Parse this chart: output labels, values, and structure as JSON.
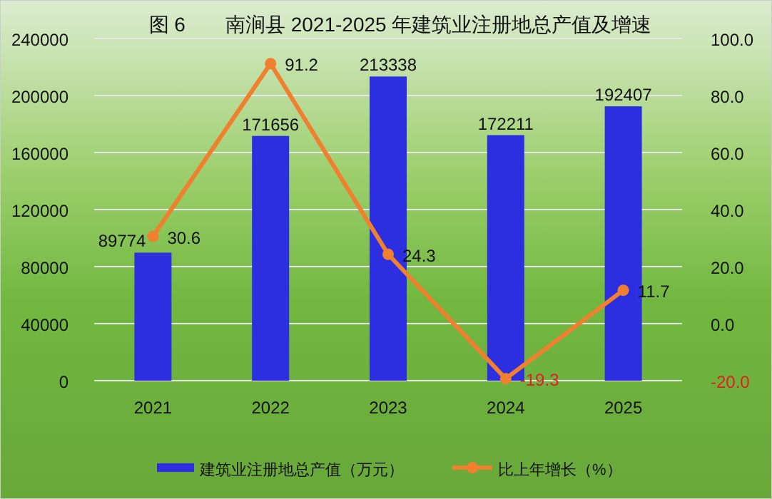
{
  "chart_data": {
    "type": "bar",
    "title": "图 6　　南涧县 2021-2025 年建筑业注册地总产值及增速",
    "categories": [
      "2021",
      "2022",
      "2023",
      "2024",
      "2025"
    ],
    "series": [
      {
        "name": "建筑业注册地总产值（万元）",
        "color": "#2b2fe0",
        "values": [
          89774,
          171656,
          213338,
          172211,
          192407
        ]
      },
      {
        "name": "比上年增长（%）",
        "type": "line",
        "axis": "y2",
        "color": "#f08030",
        "marker": "circle",
        "values": [
          30.6,
          91.2,
          24.3,
          -19.3,
          11.7
        ]
      }
    ],
    "ylim": [
      0,
      240000
    ],
    "yticks": [
      0,
      40000,
      80000,
      120000,
      160000,
      200000,
      240000
    ],
    "y2lim": [
      -20,
      100
    ],
    "y2ticks": [
      {
        "value": -20,
        "label": "-20.0"
      },
      {
        "value": 0,
        "label": "0.0"
      },
      {
        "value": 20,
        "label": "20.0"
      },
      {
        "value": 40,
        "label": "40.0"
      },
      {
        "value": 60,
        "label": "60.0"
      },
      {
        "value": 80,
        "label": "80.0"
      },
      {
        "value": 100,
        "label": "100.0"
      }
    ],
    "grid": "y",
    "legend": "bottom",
    "data_labels": true
  }
}
